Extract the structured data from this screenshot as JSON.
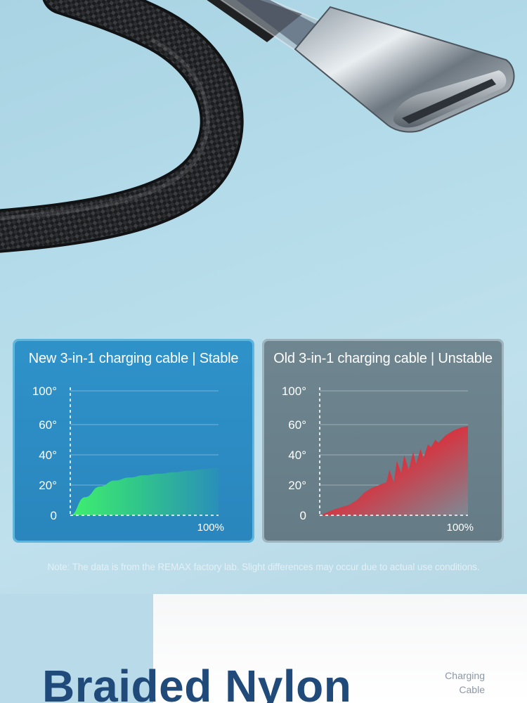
{
  "note": "Note: The data is from the REMAX factory lab. Slight differences may occur due to actual use conditions.",
  "bottom": {
    "title": "Braided Nylon",
    "side_line1": "Charging",
    "side_line2": "Cable"
  },
  "charts": {
    "new": {
      "title": "New 3-in-1 charging cable | Stable",
      "y_ticks": [
        "100°",
        "60°",
        "40°",
        "20°",
        "0"
      ],
      "x_end_label": "100%",
      "fill_colors": [
        "#38e06a",
        "#2a9ec0"
      ]
    },
    "old": {
      "title": "Old 3-in-1 charging cable | Unstable",
      "y_ticks": [
        "100°",
        "60°",
        "40°",
        "20°",
        "0"
      ],
      "x_end_label": "100%",
      "fill_colors": [
        "#d8353d",
        "#8a8f99"
      ]
    }
  },
  "chart_data": [
    {
      "type": "area",
      "title": "New 3-in-1 charging cable | Stable",
      "y_tick_labels": [
        "0",
        "20°",
        "40°",
        "60°",
        "100°"
      ],
      "x": [
        0,
        10,
        20,
        30,
        40,
        50,
        60,
        70,
        80,
        90,
        100
      ],
      "values": [
        0,
        12,
        19,
        23,
        25,
        26.5,
        27.5,
        28.5,
        29.5,
        30.5,
        31.5
      ],
      "x_end_label": "100%"
    },
    {
      "type": "area",
      "title": "Old 3-in-1 charging cable | Unstable",
      "y_tick_labels": [
        "0",
        "20°",
        "40°",
        "60°",
        "100°"
      ],
      "x": [
        0,
        10,
        20,
        25,
        30,
        35,
        40,
        45,
        47,
        50,
        52,
        55,
        57,
        60,
        63,
        65,
        68,
        70,
        73,
        75,
        78,
        80,
        85,
        90,
        95,
        100
      ],
      "values": [
        0,
        4,
        7,
        10,
        15,
        18,
        20,
        22,
        30,
        22,
        36,
        28,
        40,
        30,
        42,
        34,
        44,
        38,
        47,
        45,
        50,
        48,
        53,
        56,
        58,
        59
      ],
      "x_end_label": "100%"
    }
  ]
}
